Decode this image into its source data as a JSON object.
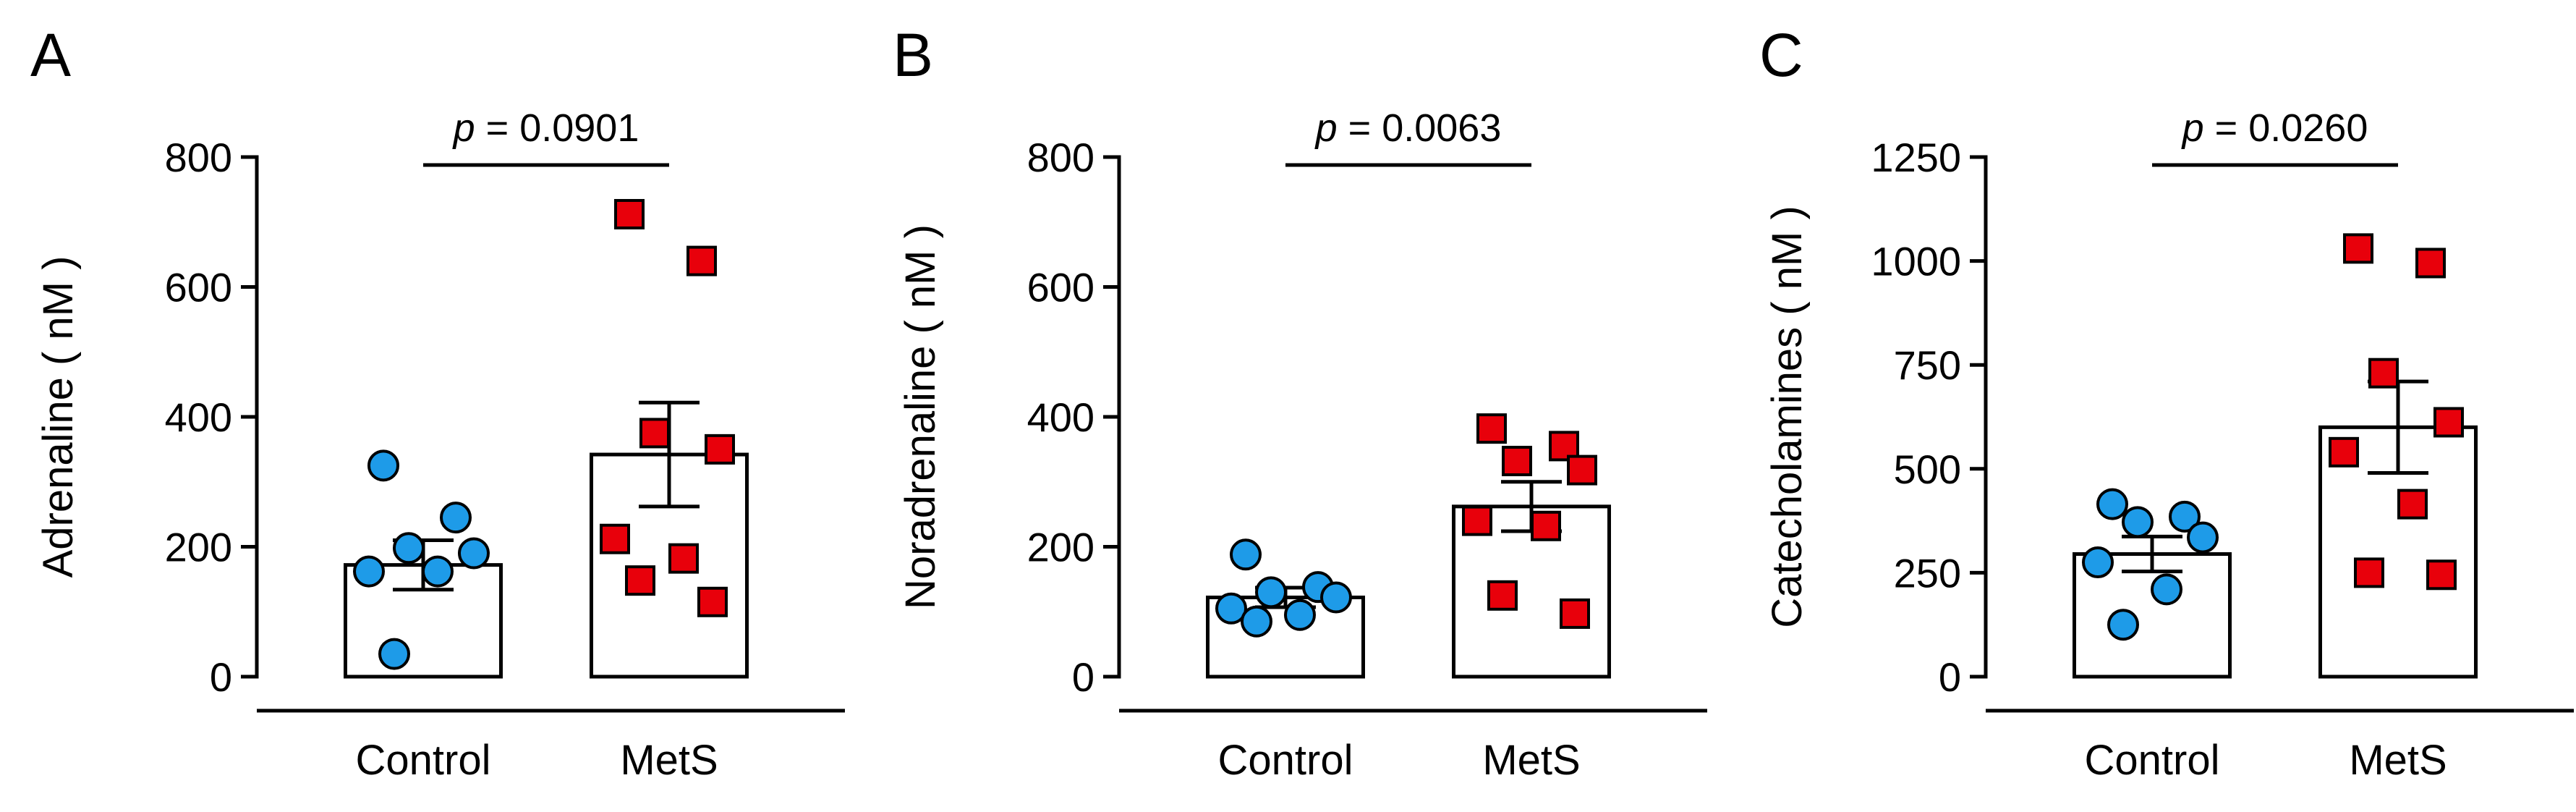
{
  "colors": {
    "control_marker": "#1E9BE8",
    "mets_marker": "#E8000B",
    "marker_edge": "#000000",
    "bar_fill": "#FFFFFF",
    "axis": "#000000"
  },
  "chart_data": [
    {
      "type": "bar",
      "panel": "A",
      "ylabel": "Adrenaline ( nM )",
      "ylim": [
        0,
        800
      ],
      "yticks": [
        0,
        200,
        400,
        600,
        800
      ],
      "yticklabels": [
        "0",
        "200",
        "400",
        "600",
        "800"
      ],
      "categories": [
        "Control",
        "MetS"
      ],
      "means": [
        172,
        342
      ],
      "sem": [
        38,
        80
      ],
      "points": [
        {
          "category": "Control",
          "marker": "circle",
          "values": [
            325,
            245,
            198,
            190,
            162,
            162,
            35
          ]
        },
        {
          "category": "MetS",
          "marker": "square",
          "values": [
            712,
            640,
            375,
            350,
            212,
            182,
            148,
            115
          ]
        }
      ],
      "annotation": {
        "p_symbol": "p",
        "p_value": "= 0.0901"
      }
    },
    {
      "type": "bar",
      "panel": "B",
      "ylabel": "Noradrenaline ( nM )",
      "ylim": [
        0,
        800
      ],
      "yticks": [
        0,
        200,
        400,
        600,
        800
      ],
      "yticklabels": [
        "0",
        "200",
        "400",
        "600",
        "800"
      ],
      "categories": [
        "Control",
        "MetS"
      ],
      "means": [
        122,
        262
      ],
      "sem": [
        15,
        38
      ],
      "points": [
        {
          "category": "Control",
          "marker": "circle",
          "values": [
            188,
            138,
            130,
            122,
            105,
            95,
            85
          ]
        },
        {
          "category": "MetS",
          "marker": "square",
          "values": [
            382,
            355,
            332,
            318,
            240,
            232,
            125,
            97
          ]
        }
      ],
      "annotation": {
        "p_symbol": "p",
        "p_value": "= 0.0063"
      }
    },
    {
      "type": "bar",
      "panel": "C",
      "ylabel": "Catecholamines ( nM )",
      "ylim": [
        0,
        1250
      ],
      "yticks": [
        0,
        250,
        500,
        750,
        1000,
        1250
      ],
      "yticklabels": [
        "0",
        "250",
        "500",
        "750",
        "1000",
        "1250"
      ],
      "categories": [
        "Control",
        "MetS"
      ],
      "means": [
        295,
        600
      ],
      "sem": [
        42,
        110
      ],
      "points": [
        {
          "category": "Control",
          "marker": "circle",
          "values": [
            415,
            385,
            372,
            335,
            275,
            210,
            125
          ]
        },
        {
          "category": "MetS",
          "marker": "square",
          "values": [
            1030,
            995,
            730,
            612,
            540,
            415,
            250,
            245
          ]
        }
      ],
      "annotation": {
        "p_symbol": "p",
        "p_value": "= 0.0260"
      }
    }
  ]
}
